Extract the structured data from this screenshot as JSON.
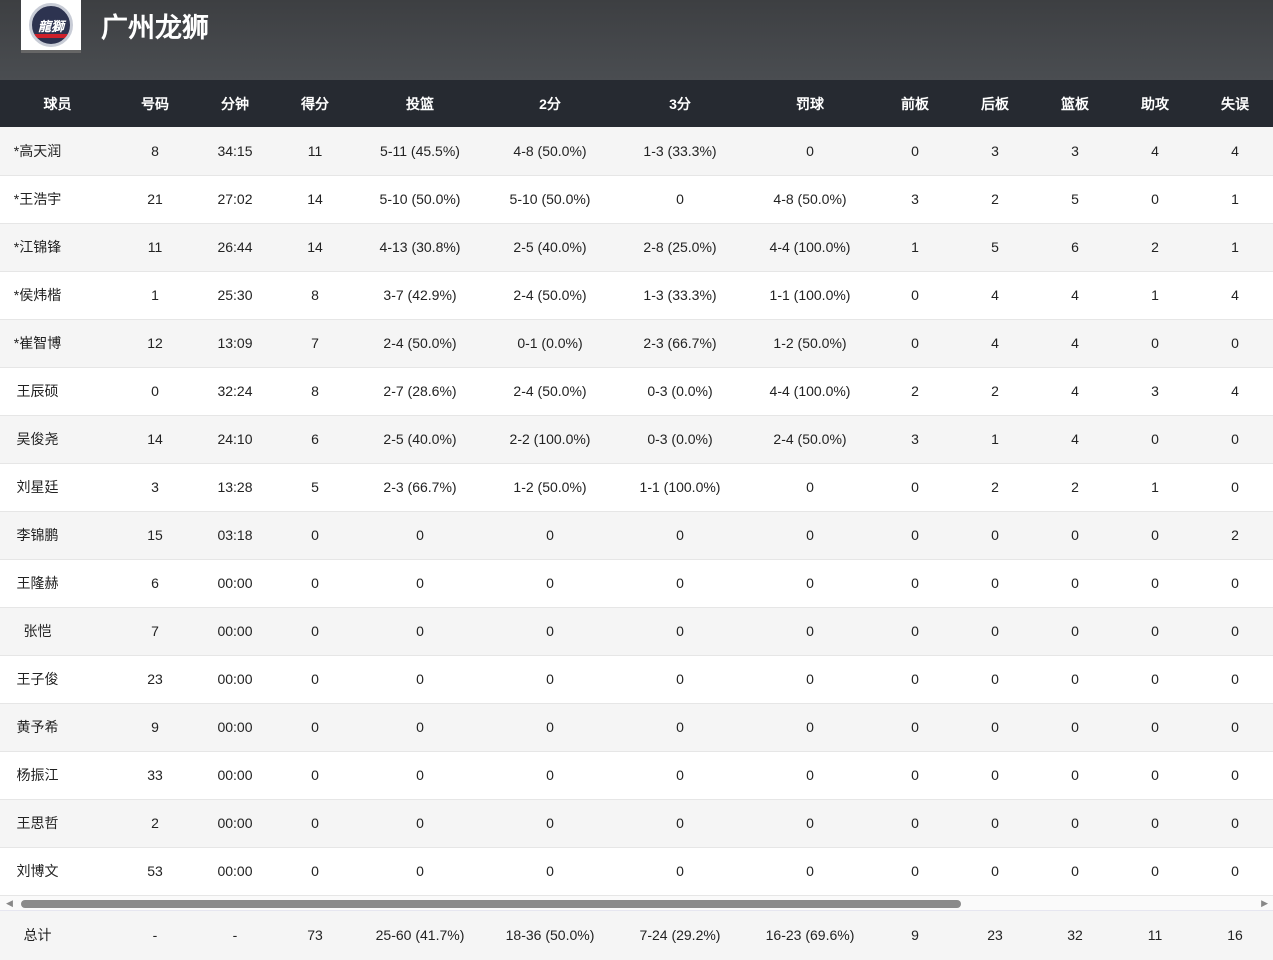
{
  "team": {
    "name": "广州龙狮",
    "logo_text": "龍獅"
  },
  "columns": [
    "球员",
    "号码",
    "分钟",
    "得分",
    "投篮",
    "2分",
    "3分",
    "罚球",
    "前板",
    "后板",
    "篮板",
    "助攻",
    "失误"
  ],
  "rows": [
    [
      "*高天润",
      "8",
      "34:15",
      "11",
      "5-11 (45.5%)",
      "4-8 (50.0%)",
      "1-3 (33.3%)",
      "0",
      "0",
      "3",
      "3",
      "4",
      "4"
    ],
    [
      "*王浩宇",
      "21",
      "27:02",
      "14",
      "5-10 (50.0%)",
      "5-10 (50.0%)",
      "0",
      "4-8 (50.0%)",
      "3",
      "2",
      "5",
      "0",
      "1"
    ],
    [
      "*江锦锋",
      "11",
      "26:44",
      "14",
      "4-13 (30.8%)",
      "2-5 (40.0%)",
      "2-8 (25.0%)",
      "4-4 (100.0%)",
      "1",
      "5",
      "6",
      "2",
      "1"
    ],
    [
      "*侯炜楷",
      "1",
      "25:30",
      "8",
      "3-7 (42.9%)",
      "2-4 (50.0%)",
      "1-3 (33.3%)",
      "1-1 (100.0%)",
      "0",
      "4",
      "4",
      "1",
      "4"
    ],
    [
      "*崔智博",
      "12",
      "13:09",
      "7",
      "2-4 (50.0%)",
      "0-1 (0.0%)",
      "2-3 (66.7%)",
      "1-2 (50.0%)",
      "0",
      "4",
      "4",
      "0",
      "0"
    ],
    [
      "王辰硕",
      "0",
      "32:24",
      "8",
      "2-7 (28.6%)",
      "2-4 (50.0%)",
      "0-3 (0.0%)",
      "4-4 (100.0%)",
      "2",
      "2",
      "4",
      "3",
      "4"
    ],
    [
      "吴俊尧",
      "14",
      "24:10",
      "6",
      "2-5 (40.0%)",
      "2-2 (100.0%)",
      "0-3 (0.0%)",
      "2-4 (50.0%)",
      "3",
      "1",
      "4",
      "0",
      "0"
    ],
    [
      "刘星廷",
      "3",
      "13:28",
      "5",
      "2-3 (66.7%)",
      "1-2 (50.0%)",
      "1-1 (100.0%)",
      "0",
      "0",
      "2",
      "2",
      "1",
      "0"
    ],
    [
      "李锦鹏",
      "15",
      "03:18",
      "0",
      "0",
      "0",
      "0",
      "0",
      "0",
      "0",
      "0",
      "0",
      "2"
    ],
    [
      "王隆赫",
      "6",
      "00:00",
      "0",
      "0",
      "0",
      "0",
      "0",
      "0",
      "0",
      "0",
      "0",
      "0"
    ],
    [
      "张恺",
      "7",
      "00:00",
      "0",
      "0",
      "0",
      "0",
      "0",
      "0",
      "0",
      "0",
      "0",
      "0"
    ],
    [
      "王子俊",
      "23",
      "00:00",
      "0",
      "0",
      "0",
      "0",
      "0",
      "0",
      "0",
      "0",
      "0",
      "0"
    ],
    [
      "黄予希",
      "9",
      "00:00",
      "0",
      "0",
      "0",
      "0",
      "0",
      "0",
      "0",
      "0",
      "0",
      "0"
    ],
    [
      "杨振江",
      "33",
      "00:00",
      "0",
      "0",
      "0",
      "0",
      "0",
      "0",
      "0",
      "0",
      "0",
      "0"
    ],
    [
      "王思哲",
      "2",
      "00:00",
      "0",
      "0",
      "0",
      "0",
      "0",
      "0",
      "0",
      "0",
      "0",
      "0"
    ],
    [
      "刘博文",
      "53",
      "00:00",
      "0",
      "0",
      "0",
      "0",
      "0",
      "0",
      "0",
      "0",
      "0",
      "0"
    ]
  ],
  "totals": [
    "总计",
    "-",
    "-",
    "73",
    "25-60 (41.7%)",
    "18-36 (50.0%)",
    "7-24 (29.2%)",
    "16-23 (69.6%)",
    "9",
    "23",
    "32",
    "11",
    "16"
  ]
}
